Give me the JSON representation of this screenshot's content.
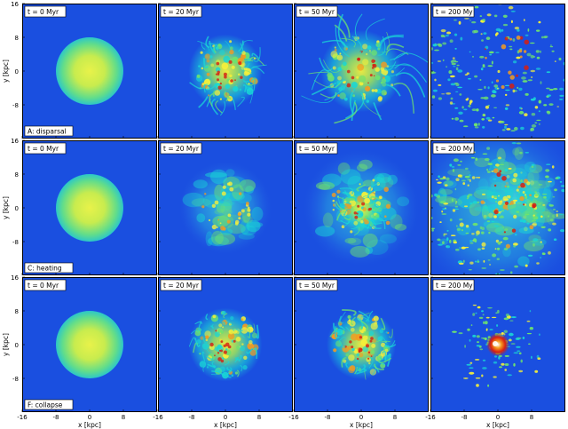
{
  "figure": {
    "ylabel": "y [kpc]",
    "xlabel": "x [kpc]",
    "x_ticks": [
      "-16",
      "-8",
      "0",
      "8"
    ],
    "y_ticks": [
      "16",
      "8",
      "0",
      "-8"
    ],
    "columns": [
      {
        "time_label": "t = 0 Myr",
        "stage": "smooth-sphere"
      },
      {
        "time_label": "t = 20 Myr",
        "stage": "early-turbulence"
      },
      {
        "time_label": "t = 50 Myr",
        "stage": "filaments"
      },
      {
        "time_label": "t = 200 My",
        "stage": "late"
      }
    ],
    "rows": [
      {
        "run_label": "A: disparsal",
        "late_style": "scattered-clumps"
      },
      {
        "run_label": "C: heating",
        "late_style": "diffuse-haze"
      },
      {
        "run_label": "F: collapse",
        "late_style": "central-core"
      }
    ],
    "colors": {
      "background": "#1a4fe0",
      "cyan": "#19d6d6",
      "green": "#6ee36e",
      "yellow": "#f5f03a",
      "orange": "#f59b1e",
      "red": "#d61e12",
      "frame": "#000000"
    }
  }
}
